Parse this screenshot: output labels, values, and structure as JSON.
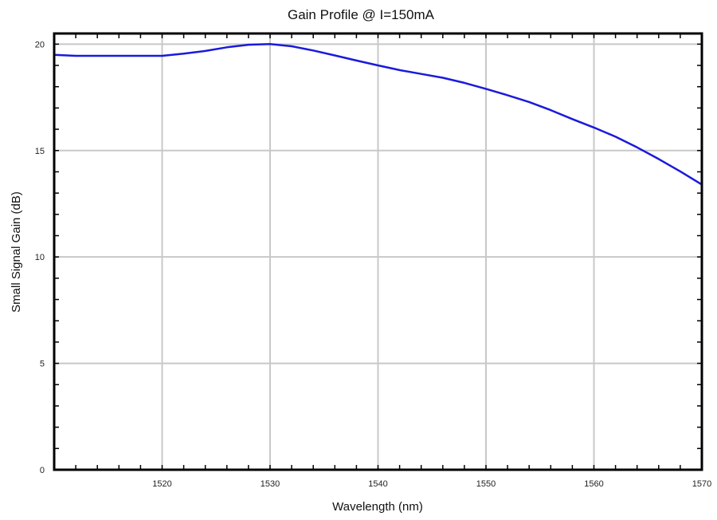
{
  "chart_data": {
    "type": "line",
    "title": "Gain Profile @ I=150mA",
    "xlabel": "Wavelength (nm)",
    "ylabel": "Small Signal Gain (dB)",
    "xlim": [
      1510,
      1570
    ],
    "ylim": [
      0,
      20.5
    ],
    "xticks": [
      1520,
      1530,
      1540,
      1550,
      1560,
      1570
    ],
    "yticks": [
      0,
      5,
      10,
      15,
      20
    ],
    "xtick_labels": [
      "1520",
      "1530",
      "1540",
      "1550",
      "1560",
      "1570"
    ],
    "ytick_labels": [
      "0",
      "5",
      "10",
      "15",
      "20"
    ],
    "grid": true,
    "legend": "none",
    "series": [
      {
        "color": "#1a1adc",
        "x": [
          1510,
          1512,
          1514,
          1516,
          1518,
          1520,
          1522,
          1524,
          1526,
          1528,
          1530,
          1532,
          1534,
          1536,
          1538,
          1540,
          1542,
          1544,
          1546,
          1548,
          1550,
          1552,
          1554,
          1556,
          1558,
          1560,
          1562,
          1564,
          1566,
          1568,
          1570
        ],
        "y": [
          19.5,
          19.45,
          19.45,
          19.45,
          19.45,
          19.45,
          19.55,
          19.68,
          19.85,
          19.97,
          20.0,
          19.9,
          19.7,
          19.47,
          19.23,
          19.0,
          18.78,
          18.6,
          18.42,
          18.18,
          17.9,
          17.6,
          17.28,
          16.9,
          16.48,
          16.08,
          15.65,
          15.15,
          14.6,
          14.02,
          13.4
        ]
      }
    ]
  }
}
